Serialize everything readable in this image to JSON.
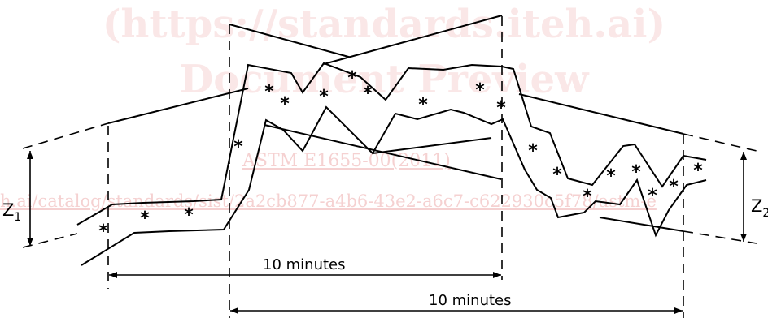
{
  "watermark": {
    "line1": "(https://standards.iteh.ai)",
    "line2": "Document Preview",
    "line3": "ASTM E1655-00(2011)",
    "line4": "h.ai/catalog/standards/sist/2a2cb877-a4b6-43e2-a6c7-c622930c5f78/astm-e"
  },
  "labels": {
    "z1": "Z1",
    "z2": "Z2",
    "span1": "10 minutes",
    "span2": "10 minutes"
  },
  "colors": {
    "line": "#000000",
    "watermark": "#d64646"
  }
}
